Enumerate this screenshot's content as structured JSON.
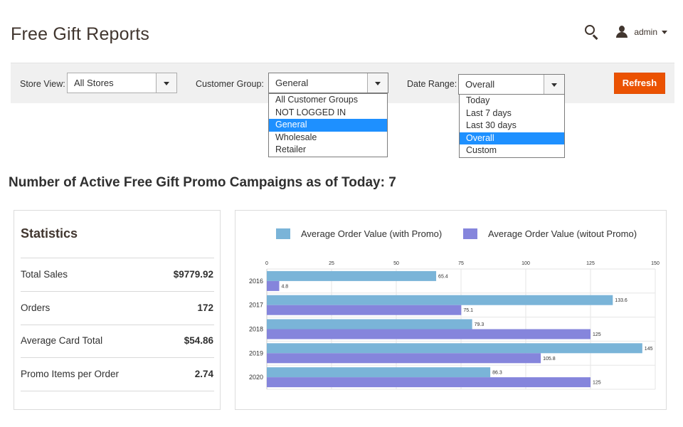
{
  "header": {
    "title": "Free Gift Reports",
    "search_icon": "search-icon",
    "user_icon": "user-icon",
    "admin_label": "admin"
  },
  "filters": {
    "store_view": {
      "label": "Store View:",
      "value": "All Stores"
    },
    "customer_group": {
      "label": "Customer Group:",
      "value": "General",
      "options": [
        "All Customer Groups",
        "NOT LOGGED IN",
        "General",
        "Wholesale",
        "Retailer"
      ],
      "selected_index": 2
    },
    "date_range": {
      "label": "Date Range:",
      "value": "Overall",
      "options": [
        "Today",
        "Last 7 days",
        "Last 30 days",
        "Overall",
        "Custom"
      ],
      "selected_index": 3
    },
    "refresh_label": "Refresh"
  },
  "campaign_heading": "Number of Active Free Gift Promo Campaigns as of Today: 7",
  "statistics": {
    "title": "Statistics",
    "rows": [
      {
        "label": "Total Sales",
        "value": "$9779.92"
      },
      {
        "label": "Orders",
        "value": "172"
      },
      {
        "label": "Average Card Total",
        "value": "$54.86"
      },
      {
        "label": "Promo Items per Order",
        "value": "2.74"
      }
    ]
  },
  "colors": {
    "accent": "#eb5202",
    "series_with_promo": "#7ab4d8",
    "series_without_promo": "#8585dc",
    "dropdown_selected": "#1e90ff"
  },
  "chart_data": {
    "type": "bar",
    "orientation": "horizontal",
    "categories": [
      "2016",
      "2017",
      "2018",
      "2019",
      "2020"
    ],
    "series": [
      {
        "name": "Average Order Value (with Promo)",
        "values": [
          65.4,
          133.6,
          79.3,
          145,
          86.3
        ],
        "color": "#7ab4d8"
      },
      {
        "name": "Average Order Value (witout Promo)",
        "values": [
          4.8,
          75.1,
          125,
          105.8,
          125
        ],
        "color": "#8585dc"
      }
    ],
    "xlim": [
      0,
      150
    ],
    "xticks": [
      0,
      25,
      50,
      75,
      100,
      125,
      150
    ],
    "legend": "top",
    "grid": true,
    "data_labels": true
  }
}
